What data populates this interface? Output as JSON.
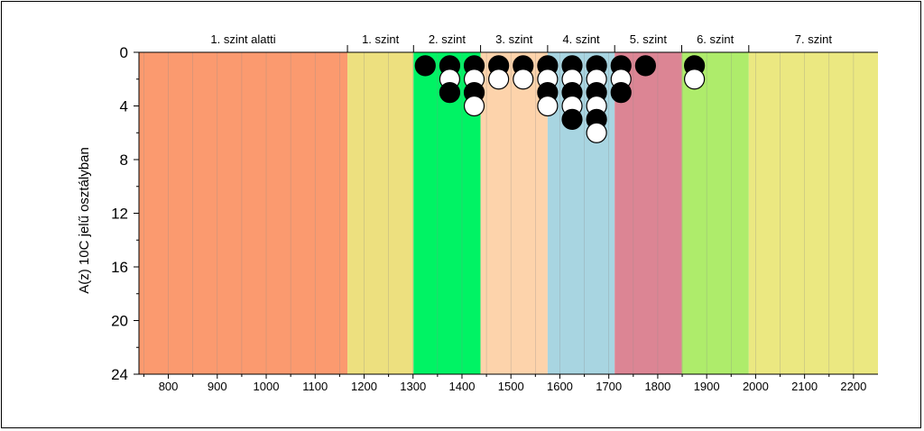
{
  "chart_data": {
    "type": "scatter",
    "ylabel": "A(z) 10C jelű osztályban",
    "xlim": [
      740,
      2250
    ],
    "ylim": [
      24,
      0
    ],
    "yticks": [
      0,
      4,
      8,
      12,
      16,
      20,
      24
    ],
    "xticks": [
      800,
      900,
      1000,
      1100,
      1200,
      1300,
      1400,
      1500,
      1600,
      1700,
      1800,
      1900,
      2000,
      2100,
      2200
    ],
    "x_minor_step": 50,
    "bands": [
      {
        "label": "1. szint alatti",
        "from": 740,
        "to": 1166,
        "color": "#fb9a6f"
      },
      {
        "label": "1. szint",
        "from": 1166,
        "to": 1301,
        "color": "#ede07f"
      },
      {
        "label": "2. szint",
        "from": 1301,
        "to": 1438,
        "color": "#00f364"
      },
      {
        "label": "3. szint",
        "from": 1438,
        "to": 1575,
        "color": "#fdd3ab"
      },
      {
        "label": "4. szint",
        "from": 1575,
        "to": 1712,
        "color": "#a8d5e1"
      },
      {
        "label": "5. szint",
        "from": 1712,
        "to": 1849,
        "color": "#dc8594"
      },
      {
        "label": "6. szint",
        "from": 1849,
        "to": 1986,
        "color": "#aeec6b"
      },
      {
        "label": "7. szint",
        "from": 1986,
        "to": 2250,
        "color": "#ebe881"
      }
    ],
    "series": [
      {
        "fill": "#000000",
        "stroke": "#000000",
        "x": [
          1325,
          1375,
          1425,
          1475,
          1525,
          1575,
          1625,
          1675,
          1725,
          1775,
          1875,
          1375,
          1425,
          1575,
          1625,
          1675,
          1725,
          1625,
          1675
        ],
        "y": [
          1,
          1,
          1,
          1,
          1,
          1,
          1,
          1,
          1,
          1,
          1,
          3,
          3,
          3,
          3,
          3,
          3,
          5,
          5
        ]
      },
      {
        "fill": "#ffffff",
        "stroke": "#000000",
        "x": [
          1375,
          1425,
          1475,
          1525,
          1575,
          1625,
          1675,
          1725,
          1875,
          1425,
          1575,
          1625,
          1675,
          1675
        ],
        "y": [
          2,
          2,
          2,
          2,
          2,
          2,
          2,
          2,
          2,
          4,
          4,
          4,
          4,
          6
        ]
      }
    ]
  }
}
